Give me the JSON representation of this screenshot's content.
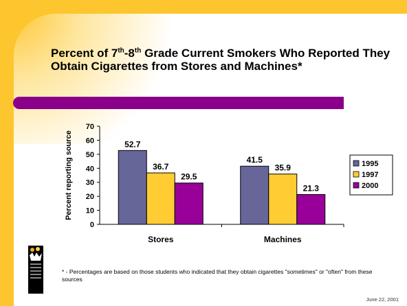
{
  "slide": {
    "title_parts": {
      "p1": "Percent of 7",
      "sup1": "th",
      "p2": "-8",
      "sup2": "th",
      "p3": " Grade Current Smokers Who Reported They Obtain Cigarettes from Stores and Machines*"
    },
    "footnote": "* - Percentages are based on those students who indicated that they obtain cigarettes \"sometimes\" or \"often\" from these sources",
    "date": "June 22, 2001",
    "logo_icon": "family-logo-icon",
    "colors": {
      "accent_yellow": "#fec62e",
      "accent_purple": "#8b008b"
    }
  },
  "chart_data": {
    "type": "bar",
    "categories": [
      "Stores",
      "Machines"
    ],
    "series": [
      {
        "name": "1995",
        "values": [
          52.7,
          41.5
        ],
        "color": "#666699"
      },
      {
        "name": "1997",
        "values": [
          36.7,
          35.9
        ],
        "color": "#ffcc33"
      },
      {
        "name": "2000",
        "values": [
          29.5,
          21.3
        ],
        "color": "#990099"
      }
    ],
    "ylabel": "Percent reporting source",
    "xlabel": "",
    "ylim": [
      0,
      70
    ],
    "yticks": [
      0,
      10,
      20,
      30,
      40,
      50,
      60,
      70
    ],
    "grid": false,
    "legend": "right",
    "data_labels": true
  }
}
